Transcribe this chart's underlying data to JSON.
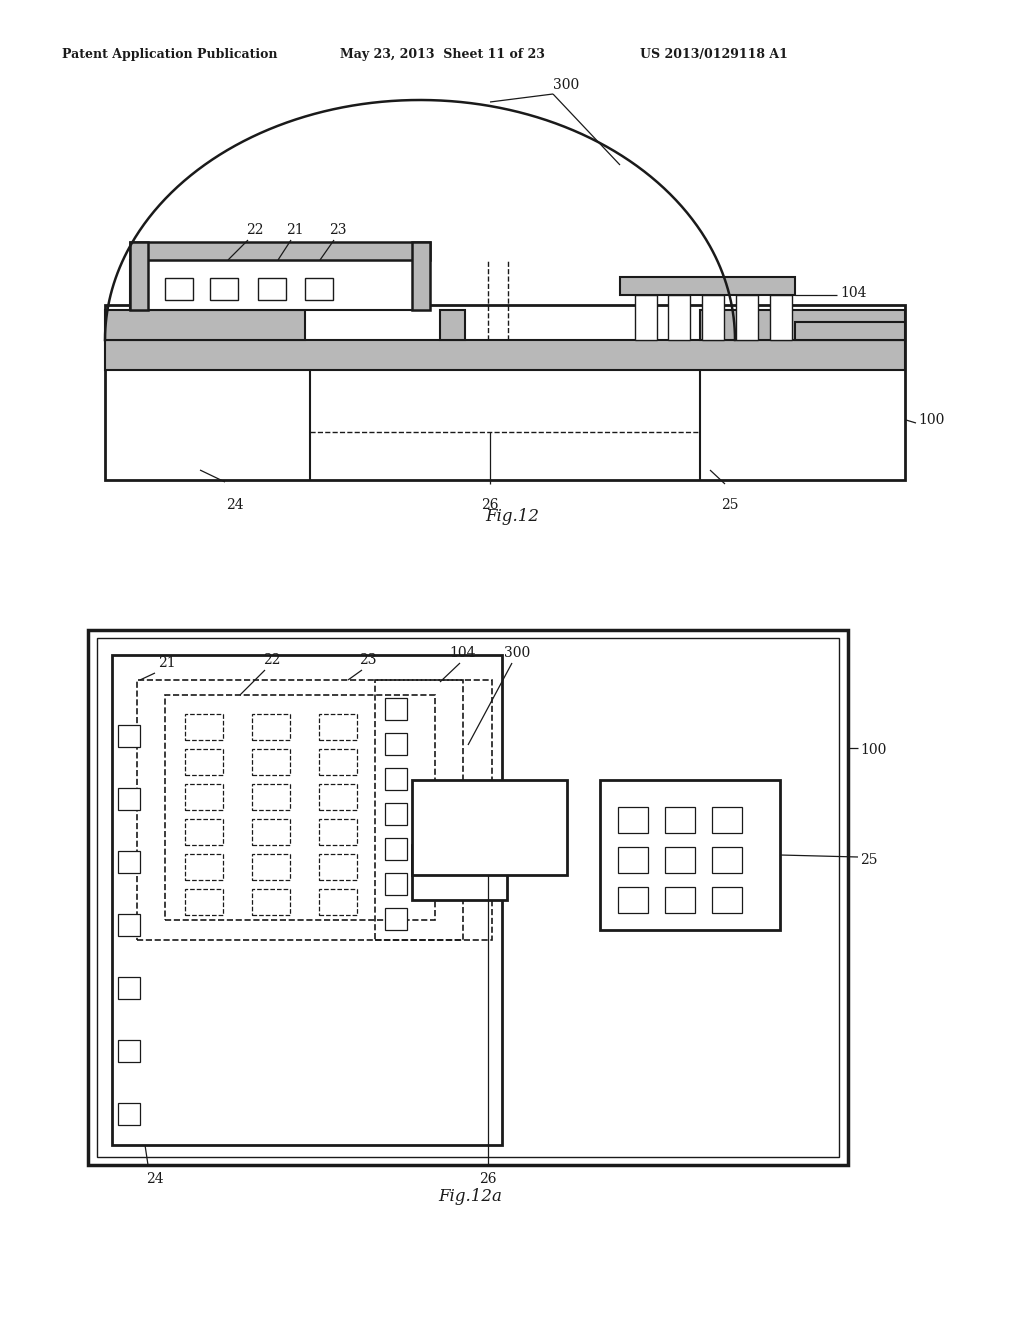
{
  "header_left": "Patent Application Publication",
  "header_mid": "May 23, 2013  Sheet 11 of 23",
  "header_right": "US 2013/0129118 A1",
  "fig12_caption": "Fig.12",
  "fig12a_caption": "Fig.12a",
  "bg_color": "#ffffff",
  "line_color": "#1a1a1a",
  "gray_fill": "#b8b8b8"
}
